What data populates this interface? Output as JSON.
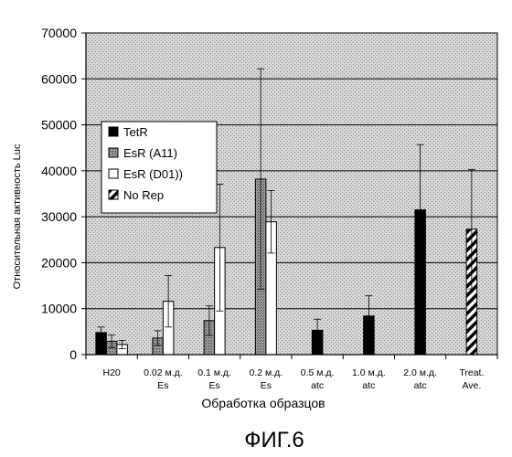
{
  "chart_data": {
    "type": "bar",
    "ylabel": "Относительная активность Luc",
    "xlabel": "Обработка образцов",
    "ylim": [
      0,
      70000
    ],
    "yticks": [
      0,
      10000,
      20000,
      30000,
      40000,
      50000,
      60000,
      70000
    ],
    "ytick_labels": [
      "0",
      "10000",
      "20000",
      "30000",
      "40000",
      "50000",
      "60000",
      "70000"
    ],
    "grid": true,
    "legend_position": "left-middle",
    "categories": [
      [
        "H20"
      ],
      [
        "0.02 м.д.",
        "Es"
      ],
      [
        "0.1 м.д.",
        "Es"
      ],
      [
        "0.2 м.д.",
        "Es"
      ],
      [
        "0.5 м.д.",
        "atc"
      ],
      [
        "1.0 м.д.",
        "atc"
      ],
      [
        "2.0 м.д.",
        "atc"
      ],
      [
        "Treat.",
        "Ave."
      ]
    ],
    "series": [
      {
        "name": "TetR",
        "fill": "solid-black",
        "values": [
          4800,
          null,
          null,
          null,
          5300,
          8400,
          31500,
          null
        ],
        "errors": [
          1200,
          null,
          null,
          null,
          2400,
          4400,
          14200,
          null
        ]
      },
      {
        "name": "EsR (A11)",
        "fill": "grey-dotted",
        "values": [
          2900,
          3600,
          7400,
          38200,
          null,
          null,
          null,
          null
        ],
        "errors": [
          1400,
          1600,
          3200,
          24000,
          null,
          null,
          null,
          null
        ]
      },
      {
        "name": "EsR (D01))",
        "fill": "white",
        "values": [
          2200,
          11600,
          23300,
          28900,
          null,
          null,
          null,
          null
        ],
        "errors": [
          900,
          5600,
          13800,
          6800,
          null,
          null,
          null,
          null
        ]
      },
      {
        "name": "No Rep",
        "fill": "diagonal-hatch",
        "values": [
          null,
          null,
          null,
          null,
          null,
          null,
          null,
          27300
        ],
        "errors": [
          null,
          null,
          null,
          null,
          null,
          null,
          null,
          13000
        ]
      }
    ]
  },
  "caption": "ФИГ.6"
}
